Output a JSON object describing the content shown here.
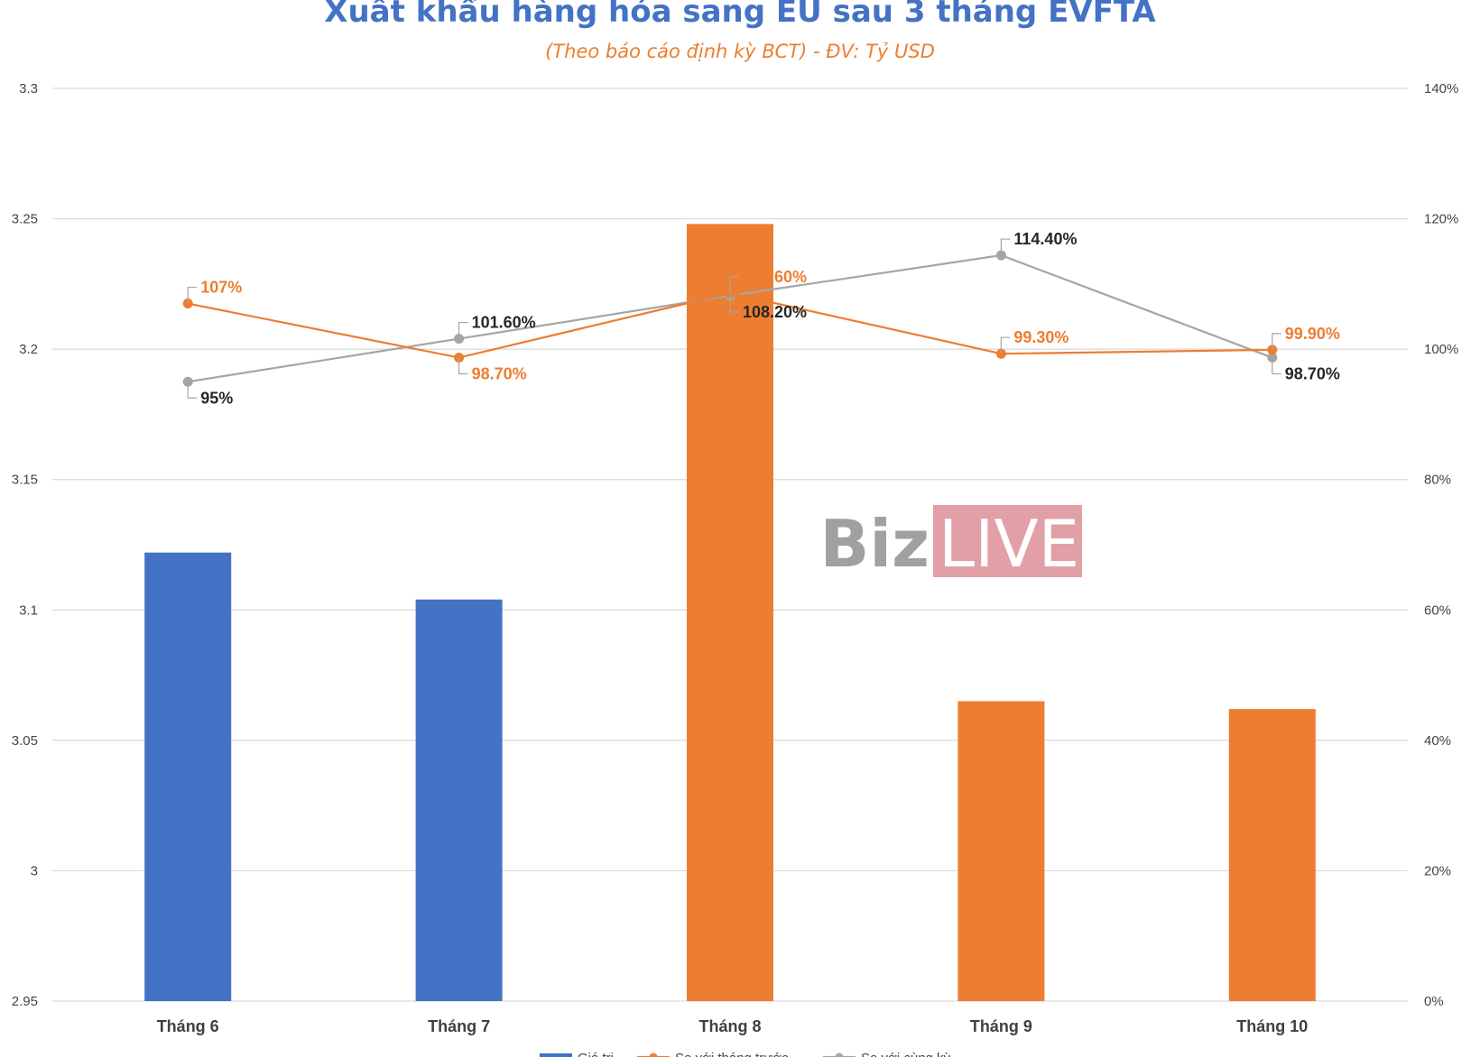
{
  "chart_data": {
    "type": "bar",
    "title": "Xuất khẩu hàng hóa sang EU sau 3 tháng EVFTA",
    "subtitle": "(Theo báo cáo định kỳ BCT)  - ĐV: Tỷ USD",
    "categories": [
      "Tháng 6",
      "Tháng 7",
      "Tháng 8",
      "Tháng 9",
      "Tháng 10"
    ],
    "y_left": {
      "min": 2.95,
      "max": 3.3,
      "ticks": [
        "2.95",
        "3",
        "3.05",
        "3.1",
        "3.15",
        "3.2",
        "3.25",
        "3.3"
      ]
    },
    "y_right": {
      "min": 0,
      "max": 140,
      "ticks": [
        "0%",
        "20%",
        "40%",
        "60%",
        "80%",
        "100%",
        "120%",
        "140%"
      ]
    },
    "grid": true,
    "legend_position": "bottom",
    "series": [
      {
        "name": "Giá trị",
        "type": "bar",
        "axis": "left",
        "values": [
          3.122,
          3.104,
          3.248,
          3.065,
          3.062
        ],
        "colors": [
          "#4472c4",
          "#4472c4",
          "#ed7d31",
          "#ed7d31",
          "#ed7d31"
        ]
      },
      {
        "name": "So với tháng trước",
        "type": "line",
        "axis": "right",
        "color": "#ed7d31",
        "values": [
          107,
          98.7,
          108.6,
          99.3,
          99.9
        ],
        "labels": [
          "107%",
          "98.70%",
          "108.60%",
          "99.30%",
          "99.90%"
        ]
      },
      {
        "name": "So với cùng kỳ",
        "type": "line",
        "axis": "right",
        "color": "#a5a5a5",
        "values": [
          95,
          101.6,
          108.2,
          114.4,
          98.7
        ],
        "labels": [
          "95%",
          "101.60%",
          "108.20%",
          "114.40%",
          "98.70%"
        ]
      }
    ]
  },
  "watermark": {
    "part1": "Biz",
    "part2": "LIVE"
  },
  "colors": {
    "title": "#4472c4",
    "subtitle": "#ed7d31",
    "bar_blue": "#4472c4",
    "bar_orange": "#ed7d31",
    "line_orange": "#ed7d31",
    "line_gray": "#a5a5a5",
    "label_dark": "#262626",
    "watermark_gray": "#a0a0a0",
    "watermark_pink": "#e0a0a5"
  }
}
